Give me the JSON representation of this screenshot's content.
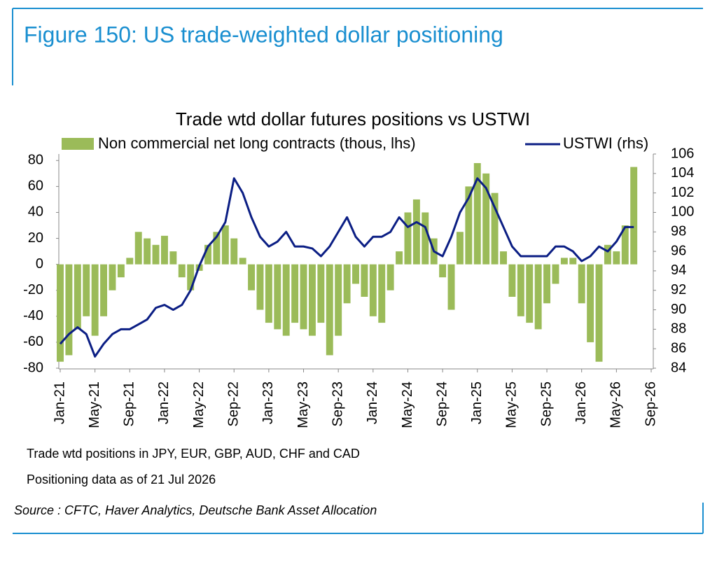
{
  "figure_title": "Figure 150: US trade-weighted dollar positioning",
  "notes": [
    "Trade wtd positions in JPY, EUR, GBP, AUD, CHF and CAD",
    "Positioning data as of 21 Jul 2026"
  ],
  "source": "Source : CFTC, Haver Analytics, Deutsche Bank Asset Allocation",
  "chart_data": {
    "type": "bar",
    "title": "Trade wtd dollar futures positions  vs USTWI",
    "x": [
      "Jan-21",
      "Feb-21",
      "Mar-21",
      "Apr-21",
      "May-21",
      "Jun-21",
      "Jul-21",
      "Aug-21",
      "Sep-21",
      "Oct-21",
      "Nov-21",
      "Dec-21",
      "Jan-22",
      "Feb-22",
      "Mar-22",
      "Apr-22",
      "May-22",
      "Jun-22",
      "Jul-22",
      "Aug-22",
      "Sep-22",
      "Oct-22",
      "Nov-22",
      "Dec-22",
      "Jan-23",
      "Feb-23",
      "Mar-23",
      "Apr-23",
      "May-23",
      "Jun-23",
      "Jul-23",
      "Aug-23",
      "Sep-23",
      "Oct-23",
      "Nov-23",
      "Dec-23",
      "Jan-24",
      "Feb-24",
      "Mar-24",
      "Apr-24",
      "May-24",
      "Jun-24",
      "Jul-24",
      "Aug-24",
      "Sep-24",
      "Oct-24",
      "Nov-24",
      "Dec-24",
      "Jan-25",
      "Feb-25",
      "Mar-25",
      "Apr-25",
      "May-25",
      "Jun-25",
      "Jul-25",
      "Aug-25",
      "Sep-25",
      "Oct-25",
      "Nov-25",
      "Dec-25",
      "Jan-26",
      "Feb-26",
      "Mar-26",
      "Apr-26",
      "May-26",
      "Jun-26",
      "Jul-26",
      "Aug-26",
      "Sep-26"
    ],
    "xticks": [
      "Jan-21",
      "May-21",
      "Sep-21",
      "Jan-22",
      "May-22",
      "Sep-22",
      "Jan-23",
      "May-23",
      "Sep-23",
      "Jan-24",
      "May-24",
      "Sep-24",
      "Jan-25",
      "May-25",
      "Sep-25",
      "Jan-26",
      "May-26",
      "Sep-26"
    ],
    "series": [
      {
        "name": "Non commercial net long contracts (thous, lhs)",
        "type": "bar",
        "color": "#9bbb59",
        "values": [
          -75,
          -70,
          -50,
          -40,
          -55,
          -40,
          -20,
          -10,
          5,
          25,
          20,
          15,
          22,
          10,
          -10,
          -20,
          -5,
          15,
          25,
          30,
          20,
          5,
          -20,
          -35,
          -45,
          -50,
          -55,
          -45,
          -50,
          -55,
          -45,
          -70,
          -55,
          -30,
          -15,
          -25,
          -40,
          -45,
          -20,
          10,
          40,
          50,
          40,
          20,
          -10,
          -35,
          25,
          60,
          78,
          70,
          55,
          10,
          -25,
          -40,
          -45,
          -50,
          -30,
          -15,
          5,
          5,
          -30,
          -60,
          -75,
          15,
          10,
          30,
          75,
          null,
          null
        ]
      },
      {
        "name": "USTWI (rhs)",
        "type": "line",
        "axis": "y2",
        "color": "#0b1e84",
        "values": [
          86.5,
          87.5,
          88.2,
          87.5,
          85.2,
          86.5,
          87.5,
          88,
          88,
          88.5,
          89,
          90.2,
          90.5,
          90,
          90.5,
          92,
          94.5,
          96.5,
          97.5,
          99,
          103.5,
          102,
          99.5,
          97.5,
          96.5,
          97,
          98,
          96.5,
          96.5,
          96.3,
          95.5,
          96.5,
          98,
          99.5,
          97.5,
          96.5,
          97.5,
          97.5,
          98,
          99.5,
          98.5,
          99,
          98.5,
          96,
          95.5,
          97.5,
          100,
          101.5,
          103.5,
          102.5,
          100.5,
          98.5,
          96.5,
          95.5,
          95.5,
          95.5,
          95.5,
          96.5,
          96.5,
          96,
          95,
          95.5,
          96.5,
          96,
          97,
          98.5,
          98.5,
          null,
          null
        ]
      }
    ],
    "ylim": [
      -80,
      85
    ],
    "yticks": [
      -80,
      -60,
      -40,
      -20,
      0,
      20,
      40,
      60,
      80
    ],
    "y2lim": [
      84,
      106
    ],
    "y2ticks": [
      84,
      86,
      88,
      90,
      92,
      94,
      96,
      98,
      100,
      102,
      104,
      106
    ],
    "grid": false
  }
}
